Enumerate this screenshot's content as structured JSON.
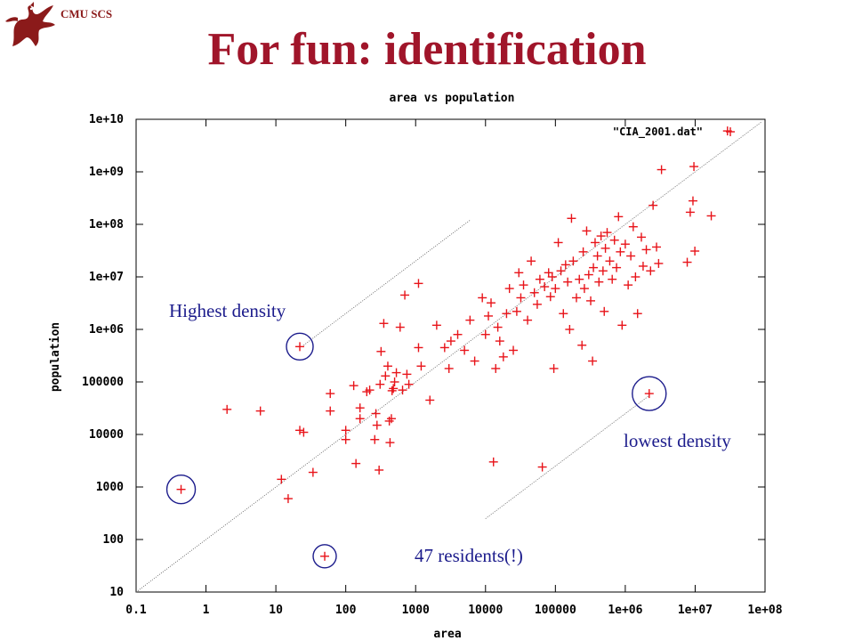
{
  "header": {
    "org": "CMU SCS",
    "title": "For fun: identification"
  },
  "annotations": {
    "highest": "Highest density",
    "lowest": "lowest density",
    "residents": "47 residents(!)"
  },
  "chart_data": {
    "type": "scatter",
    "title": "area vs population",
    "xlabel": "area",
    "ylabel": "population",
    "xscale": "log",
    "yscale": "log",
    "xlim": [
      0.1,
      100000000
    ],
    "ylim": [
      10,
      10000000000
    ],
    "xticks": [
      "0.1",
      "1",
      "10",
      "100",
      "1000",
      "10000",
      "100000",
      "1e+06",
      "1e+07",
      "1e+08"
    ],
    "yticks": [
      "10",
      "100",
      "1000",
      "10000",
      "100000",
      "1e+06",
      "1e+07",
      "1e+08",
      "1e+09",
      "1e+10"
    ],
    "grid": false,
    "legend": "top-right",
    "colors": {
      "series": "#e8141a",
      "annotation": "#1c1c8c",
      "title": "#a0152a"
    },
    "series": [
      {
        "name": "\"CIA_2001.dat\"",
        "points": [
          [
            0.44,
            900
          ],
          [
            2,
            30000
          ],
          [
            6,
            28000
          ],
          [
            12,
            1400
          ],
          [
            15,
            600
          ],
          [
            22,
            12000
          ],
          [
            25,
            11000
          ],
          [
            22,
            470000
          ],
          [
            34,
            1900
          ],
          [
            50,
            48
          ],
          [
            60,
            60000
          ],
          [
            60,
            28000
          ],
          [
            100,
            12000
          ],
          [
            100,
            8000
          ],
          [
            130,
            85000
          ],
          [
            140,
            2800
          ],
          [
            160,
            20000
          ],
          [
            160,
            32000
          ],
          [
            200,
            65000
          ],
          [
            220,
            70000
          ],
          [
            260,
            8000
          ],
          [
            270,
            25000
          ],
          [
            280,
            15000
          ],
          [
            300,
            2100
          ],
          [
            310,
            90000
          ],
          [
            320,
            380000
          ],
          [
            350,
            1300000
          ],
          [
            370,
            130000
          ],
          [
            400,
            200000
          ],
          [
            420,
            18000
          ],
          [
            430,
            7000
          ],
          [
            450,
            20000
          ],
          [
            460,
            68000
          ],
          [
            480,
            75000
          ],
          [
            500,
            100000
          ],
          [
            530,
            150000
          ],
          [
            600,
            1100000
          ],
          [
            650,
            70000
          ],
          [
            700,
            4500000
          ],
          [
            750,
            140000
          ],
          [
            800,
            90000
          ],
          [
            1100,
            7500000
          ],
          [
            1100,
            450000
          ],
          [
            1200,
            200000
          ],
          [
            1600,
            45000
          ],
          [
            2000,
            1200000
          ],
          [
            2600,
            450000
          ],
          [
            3000,
            180000
          ],
          [
            3200,
            600000
          ],
          [
            4000,
            800000
          ],
          [
            5000,
            400000
          ],
          [
            6000,
            1500000
          ],
          [
            7000,
            250000
          ],
          [
            9000,
            4000000
          ],
          [
            10000,
            800000
          ],
          [
            11000,
            1800000
          ],
          [
            12000,
            3200000
          ],
          [
            13000,
            3000
          ],
          [
            14000,
            180000
          ],
          [
            15000,
            1100000
          ],
          [
            16000,
            600000
          ],
          [
            18000,
            300000
          ],
          [
            20000,
            2000000
          ],
          [
            22000,
            6000000
          ],
          [
            25000,
            400000
          ],
          [
            28000,
            2200000
          ],
          [
            30000,
            12000000
          ],
          [
            32000,
            4000000
          ],
          [
            35000,
            7000000
          ],
          [
            40000,
            1500000
          ],
          [
            45000,
            20000000
          ],
          [
            50000,
            5000000
          ],
          [
            55000,
            3000000
          ],
          [
            60000,
            9000000
          ],
          [
            65000,
            2400
          ],
          [
            70000,
            6500000
          ],
          [
            80000,
            12000000
          ],
          [
            85000,
            4200000
          ],
          [
            90000,
            10000000
          ],
          [
            95000,
            180000
          ],
          [
            100000,
            6000000
          ],
          [
            110000,
            45000000
          ],
          [
            120000,
            13000000
          ],
          [
            130000,
            2000000
          ],
          [
            140000,
            17000000
          ],
          [
            150000,
            8000000
          ],
          [
            160000,
            1000000
          ],
          [
            170000,
            130000000
          ],
          [
            180000,
            20000000
          ],
          [
            200000,
            4000000
          ],
          [
            220000,
            9000000
          ],
          [
            240000,
            500000
          ],
          [
            250000,
            30000000
          ],
          [
            260000,
            6000000
          ],
          [
            280000,
            75000000
          ],
          [
            300000,
            11000000
          ],
          [
            320000,
            3500000
          ],
          [
            340000,
            250000
          ],
          [
            350000,
            15000000
          ],
          [
            370000,
            45000000
          ],
          [
            400000,
            25000000
          ],
          [
            420000,
            8000000
          ],
          [
            450000,
            60000000
          ],
          [
            480000,
            13000000
          ],
          [
            500000,
            2200000
          ],
          [
            520000,
            35000000
          ],
          [
            550000,
            70000000
          ],
          [
            600000,
            20000000
          ],
          [
            650000,
            9000000
          ],
          [
            700000,
            50000000
          ],
          [
            750000,
            15000000
          ],
          [
            800000,
            140000000
          ],
          [
            850000,
            30000000
          ],
          [
            900000,
            1200000
          ],
          [
            1000000,
            42000000
          ],
          [
            1100000,
            7000000
          ],
          [
            1200000,
            25000000
          ],
          [
            1300000,
            90000000
          ],
          [
            1400000,
            10000000
          ],
          [
            1500000,
            2000000
          ],
          [
            1700000,
            57000000
          ],
          [
            1800000,
            16000000
          ],
          [
            2000000,
            33000000
          ],
          [
            2200000,
            60000
          ],
          [
            2300000,
            13000000
          ],
          [
            2500000,
            230000000
          ],
          [
            2800000,
            37000000
          ],
          [
            3000000,
            18000000
          ],
          [
            3300000,
            1100000000
          ],
          [
            7700000,
            19000000
          ],
          [
            8500000,
            170000000
          ],
          [
            9300000,
            280000000
          ],
          [
            9600000,
            1260000000
          ],
          [
            9900000,
            31000000
          ],
          [
            17000000,
            145000000
          ],
          [
            29000000,
            6000000000
          ]
        ]
      }
    ]
  }
}
